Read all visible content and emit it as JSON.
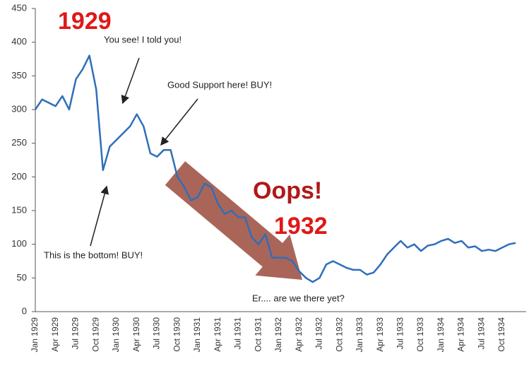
{
  "chart_data": {
    "type": "line",
    "categories": [
      "Jan 1929",
      null,
      null,
      "Apr 1929",
      null,
      null,
      "Jul 1929",
      null,
      null,
      "Oct 1929",
      null,
      null,
      "Jan 1930",
      null,
      null,
      "Apr 1930",
      null,
      null,
      "Jul 1930",
      null,
      null,
      "Oct 1930",
      null,
      null,
      "Jan 1931",
      null,
      null,
      "Apr 1931",
      null,
      null,
      "Jul 1931",
      null,
      null,
      "Oct 1931",
      null,
      null,
      "Jan 1932",
      null,
      null,
      "Apr 1932",
      null,
      null,
      "Jul 1932",
      null,
      null,
      "Oct 1932",
      null,
      null,
      "Jan 1933",
      null,
      null,
      "Apr 1933",
      null,
      null,
      "Jul 1933",
      null,
      null,
      "Oct 1933",
      null,
      null,
      "Jan 1934",
      null,
      null,
      "Apr 1934",
      null,
      null,
      "Jul 1934",
      null,
      null,
      "Oct 1934",
      null,
      null
    ],
    "values": [
      300,
      315,
      310,
      305,
      320,
      300,
      345,
      360,
      380,
      330,
      210,
      245,
      255,
      265,
      275,
      293,
      275,
      235,
      230,
      240,
      240,
      200,
      185,
      165,
      170,
      190,
      185,
      160,
      145,
      150,
      140,
      140,
      110,
      100,
      115,
      80,
      80,
      80,
      75,
      60,
      50,
      44,
      50,
      70,
      75,
      70,
      65,
      62,
      62,
      55,
      58,
      70,
      85,
      95,
      105,
      95,
      100,
      90,
      98,
      100,
      105,
      108,
      102,
      105,
      95,
      97,
      90,
      92,
      90,
      95,
      100,
      102
    ],
    "color": "#2f6eba",
    "ylim": [
      0,
      450
    ],
    "yticks": [
      0,
      50,
      100,
      150,
      200,
      250,
      300,
      350,
      400,
      450
    ],
    "grid": false,
    "annotations": [
      "1929",
      "You see! I told you!",
      "Good Support here! BUY!",
      "This is the bottom! BUY!",
      "Oops!",
      "1932",
      "Er.... are we there yet?"
    ]
  }
}
